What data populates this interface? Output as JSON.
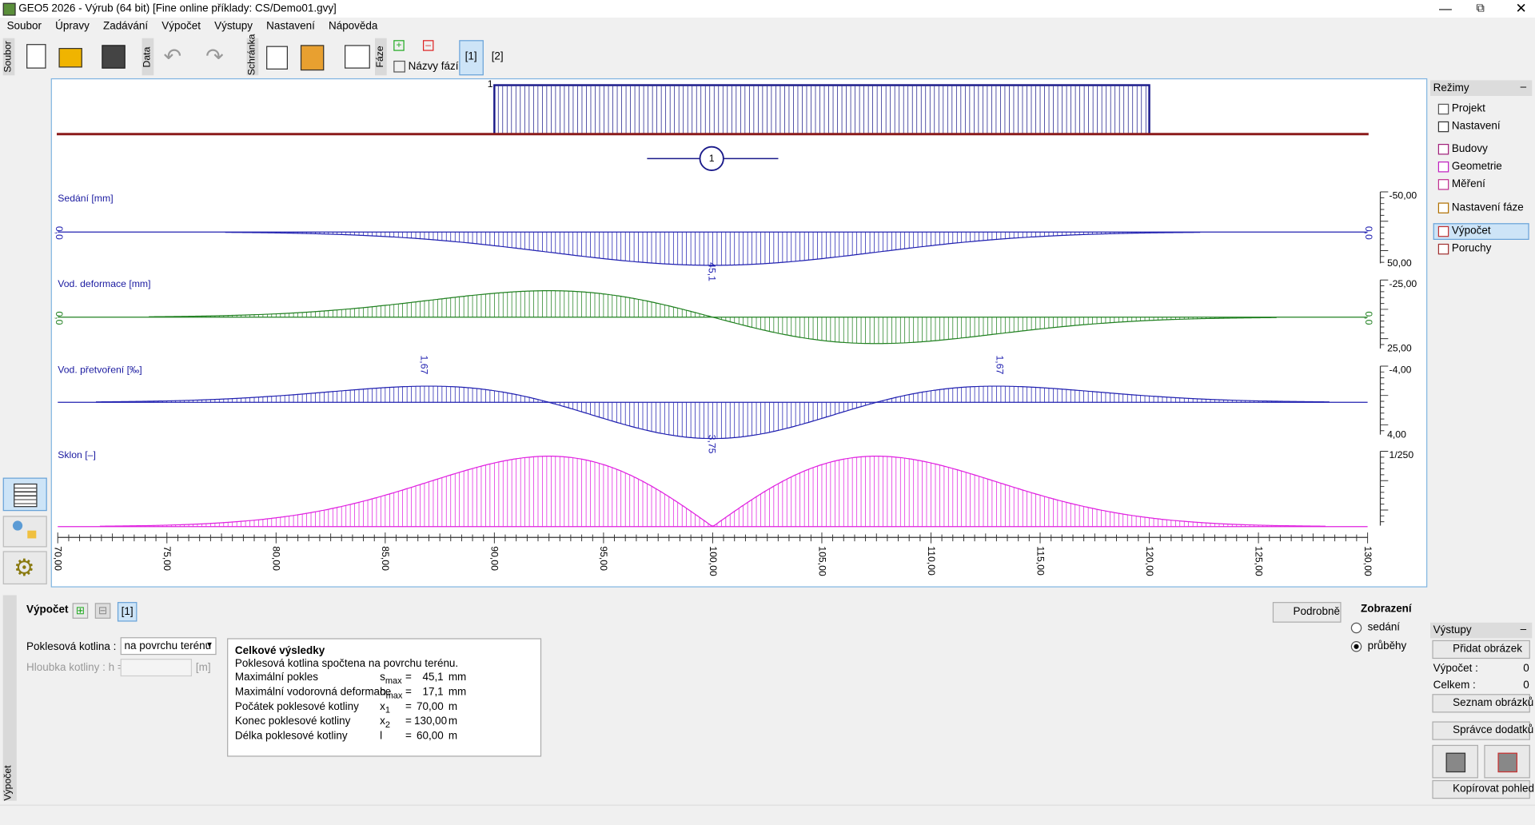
{
  "window": {
    "title": "GEO5 2026 - Výrub (64 bit) [Fine online příklady: CS/Demo01.gvy]"
  },
  "menu": [
    "Soubor",
    "Úpravy",
    "Zadávání",
    "Výpočet",
    "Výstupy",
    "Nastavení",
    "Nápověda"
  ],
  "toolbar": {
    "group_file": "Soubor",
    "group_data": "Data",
    "group_clipboard": "Schránka",
    "group_phase": "Fáze",
    "phase_names": "Názvy fází",
    "phases": [
      "[1]",
      "[2]"
    ]
  },
  "canvas": {
    "building_label": "1",
    "anchor_label": "1",
    "plots": [
      {
        "label": "Sedání [mm]",
        "scale_top": "-50,00",
        "scale_bottom": "50,00",
        "zero_label": "0,0",
        "value_labels": [
          "45,1"
        ]
      },
      {
        "label": "Vod. deformace [mm]",
        "scale_top": "-25,00",
        "scale_bottom": "25,00",
        "zero_label": "0,0"
      },
      {
        "label": "Vod. přetvoření [‰]",
        "scale_top": "-4,00",
        "scale_bottom": "4,00",
        "value_labels": [
          "1,67",
          "3,75",
          "1,67"
        ]
      },
      {
        "label": "Sklon [–]",
        "scale_top": "1/250"
      }
    ],
    "x_axis_labels": [
      "70,00",
      "75,00",
      "80,00",
      "85,00",
      "90,00",
      "95,00",
      "100,00",
      "105,00",
      "110,00",
      "115,00",
      "120,00",
      "125,00",
      "130,00"
    ]
  },
  "modes": {
    "title": "Režimy",
    "items": [
      "Projekt",
      "Nastavení",
      "Budovy",
      "Geometrie",
      "Měření",
      "Nastavení fáze",
      "Výpočet",
      "Poruchy"
    ]
  },
  "calc": {
    "tab": "Výpočet",
    "label": "Výpočet :",
    "phase": "[1]",
    "detail": "Podrobně",
    "trough_label": "Poklesová kotlina :",
    "trough_value": "na povrchu terénu",
    "depth_label": "Hloubka kotliny : h =",
    "depth_unit": "[m]",
    "display": {
      "title": "Zobrazení",
      "options": [
        "sedání",
        "průběhy"
      ]
    }
  },
  "results": {
    "title": "Celkové výsledky",
    "note": "Poklesová kotlina spočtena na povrchu terénu.",
    "rows": [
      {
        "name": "Maximální pokles",
        "sym": "s",
        "sub": "max",
        "eq": "=",
        "value": "45,1",
        "unit": "mm"
      },
      {
        "name": "Maximální vodorovná deformace",
        "sym": "h",
        "sub": "max",
        "eq": "=",
        "value": "17,1",
        "unit": "mm"
      },
      {
        "name": "Počátek poklesové kotliny",
        "sym": "x",
        "sub": "1",
        "eq": "=",
        "value": "70,00",
        "unit": "m"
      },
      {
        "name": "Konec poklesové kotliny",
        "sym": "x",
        "sub": "2",
        "eq": "=",
        "value": "130,00",
        "unit": "m"
      },
      {
        "name": "Délka poklesové kotliny",
        "sym": "l",
        "eq": "=",
        "value": "60,00",
        "unit": "m"
      }
    ]
  },
  "outputs": {
    "title": "Výstupy",
    "add_picture": "Přidat obrázek",
    "calc_label": "Výpočet :",
    "calc_count": "0",
    "total_label": "Celkem :",
    "total_count": "0",
    "list": "Seznam obrázků",
    "appendix": "Správce dodatků",
    "copy": "Kopírovat pohled"
  }
}
